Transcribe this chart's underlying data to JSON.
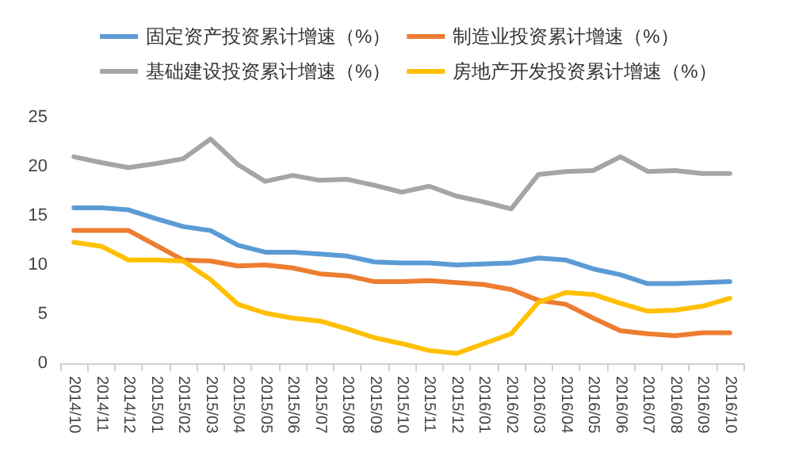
{
  "chart_data": {
    "type": "line",
    "categories": [
      "2014/10",
      "2014/11",
      "2014/12",
      "2015/01",
      "2015/02",
      "2015/03",
      "2015/04",
      "2015/05",
      "2015/06",
      "2015/07",
      "2015/08",
      "2015/09",
      "2015/10",
      "2015/11",
      "2015/12",
      "2016/01",
      "2016/02",
      "2016/03",
      "2016/04",
      "2016/05",
      "2016/06",
      "2016/07",
      "2016/08",
      "2016/09",
      "2016/10"
    ],
    "series": [
      {
        "name": "固定资产投资累计增速（%）",
        "color": "#5b9bd5",
        "values": [
          15.8,
          15.8,
          15.6,
          14.7,
          13.9,
          13.5,
          12.0,
          11.3,
          11.3,
          11.1,
          10.9,
          10.3,
          10.2,
          10.2,
          10.0,
          10.1,
          10.2,
          10.7,
          10.5,
          9.6,
          9.0,
          8.1,
          8.1,
          8.2,
          8.3
        ]
      },
      {
        "name": "制造业投资累计增速（%）",
        "color": "#ed7d31",
        "values": [
          13.5,
          13.5,
          13.5,
          12.0,
          10.5,
          10.4,
          9.9,
          10.0,
          9.7,
          9.1,
          8.9,
          8.3,
          8.3,
          8.4,
          8.2,
          8.0,
          7.5,
          6.4,
          6.0,
          4.6,
          3.3,
          3.0,
          2.8,
          3.1,
          3.1
        ]
      },
      {
        "name": "基础建设投资累计增速（%）",
        "color": "#a5a5a5",
        "values": [
          21.0,
          20.4,
          19.9,
          20.3,
          20.8,
          22.8,
          20.2,
          18.5,
          19.1,
          18.6,
          18.7,
          18.1,
          17.4,
          18.0,
          17.0,
          16.4,
          15.7,
          19.2,
          19.5,
          19.6,
          21.0,
          19.5,
          19.6,
          19.3,
          19.3
        ]
      },
      {
        "name": "房地产开发投资累计增速（%）",
        "color": "#ffc000",
        "values": [
          12.3,
          11.9,
          10.5,
          10.5,
          10.4,
          8.5,
          6.0,
          5.1,
          4.6,
          4.3,
          3.5,
          2.6,
          2.0,
          1.3,
          1.0,
          2.0,
          3.0,
          6.2,
          7.2,
          7.0,
          6.1,
          5.3,
          5.4,
          5.8,
          6.6
        ]
      }
    ],
    "ylim": [
      0,
      25
    ],
    "yticks": [
      0,
      5,
      10,
      15,
      20,
      25
    ],
    "grid": false,
    "legend": "top",
    "marker": "none",
    "line_style": "solid"
  }
}
